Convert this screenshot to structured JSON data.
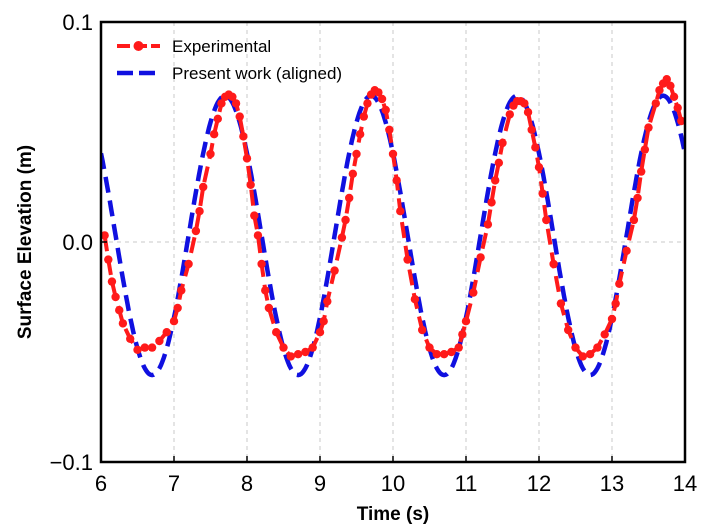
{
  "chart_data": {
    "type": "line",
    "xlabel": "Time (s)",
    "ylabel": "Surface Elevation (m)",
    "xlim": [
      6,
      14
    ],
    "ylim": [
      -0.1,
      0.1
    ],
    "xticks": [
      6,
      7,
      8,
      9,
      10,
      11,
      12,
      13,
      14
    ],
    "xtick_labels": [
      "6",
      "7",
      "8",
      "9",
      "10",
      "11",
      "12",
      "13",
      "14"
    ],
    "yticks": [
      -0.1,
      0.0,
      0.1
    ],
    "ytick_labels": [
      "−0.1",
      "0.0",
      "0.1"
    ],
    "grid": true,
    "legend_position": "top-left",
    "series": [
      {
        "name": "Experimental",
        "color": "#ff1a1a",
        "style": "dashed-with-circle-markers",
        "x": [
          6.05,
          6.1,
          6.15,
          6.2,
          6.25,
          6.3,
          6.4,
          6.5,
          6.6,
          6.7,
          6.8,
          6.9,
          7.0,
          7.05,
          7.1,
          7.2,
          7.3,
          7.35,
          7.4,
          7.5,
          7.55,
          7.6,
          7.65,
          7.7,
          7.75,
          7.8,
          7.85,
          7.9,
          7.95,
          8.0,
          8.05,
          8.1,
          8.15,
          8.2,
          8.25,
          8.3,
          8.4,
          8.5,
          8.6,
          8.7,
          8.8,
          8.9,
          9.0,
          9.05,
          9.1,
          9.2,
          9.3,
          9.35,
          9.4,
          9.45,
          9.5,
          9.55,
          9.6,
          9.65,
          9.7,
          9.75,
          9.8,
          9.85,
          9.9,
          9.95,
          10.0,
          10.05,
          10.1,
          10.2,
          10.3,
          10.4,
          10.5,
          10.6,
          10.7,
          10.8,
          10.9,
          10.95,
          11.0,
          11.1,
          11.2,
          11.3,
          11.35,
          11.4,
          11.45,
          11.5,
          11.6,
          11.65,
          11.7,
          11.75,
          11.8,
          11.85,
          11.9,
          11.95,
          12.0,
          12.05,
          12.1,
          12.2,
          12.3,
          12.4,
          12.5,
          12.6,
          12.7,
          12.8,
          12.9,
          13.0,
          13.05,
          13.1,
          13.2,
          13.3,
          13.35,
          13.4,
          13.45,
          13.5,
          13.6,
          13.65,
          13.7,
          13.75,
          13.8,
          13.85,
          13.9,
          13.95
        ],
        "y": [
          0.003,
          -0.008,
          -0.018,
          -0.025,
          -0.031,
          -0.037,
          -0.044,
          -0.049,
          -0.048,
          -0.048,
          -0.045,
          -0.041,
          -0.036,
          -0.03,
          -0.022,
          -0.01,
          0.005,
          0.014,
          0.025,
          0.04,
          0.049,
          0.056,
          0.063,
          0.066,
          0.067,
          0.066,
          0.063,
          0.057,
          0.048,
          0.038,
          0.026,
          0.012,
          0.003,
          -0.01,
          -0.022,
          -0.03,
          -0.041,
          -0.048,
          -0.052,
          -0.051,
          -0.05,
          -0.048,
          -0.041,
          -0.036,
          -0.027,
          -0.013,
          0.002,
          0.01,
          0.02,
          0.031,
          0.04,
          0.049,
          0.057,
          0.063,
          0.067,
          0.069,
          0.068,
          0.065,
          0.06,
          0.051,
          0.04,
          0.028,
          0.014,
          -0.008,
          -0.026,
          -0.04,
          -0.048,
          -0.051,
          -0.051,
          -0.05,
          -0.048,
          -0.042,
          -0.036,
          -0.023,
          -0.007,
          0.008,
          0.018,
          0.028,
          0.036,
          0.045,
          0.058,
          0.062,
          0.064,
          0.064,
          0.063,
          0.059,
          0.051,
          0.043,
          0.034,
          0.022,
          0.01,
          -0.01,
          -0.028,
          -0.04,
          -0.048,
          -0.052,
          -0.051,
          -0.048,
          -0.042,
          -0.035,
          -0.028,
          -0.019,
          -0.004,
          0.01,
          0.02,
          0.032,
          0.042,
          0.052,
          0.063,
          0.069,
          0.072,
          0.074,
          0.071,
          0.066,
          0.061,
          0.055
        ],
        "markers": true
      },
      {
        "name": "Present work (aligned)",
        "color": "#1010e0",
        "style": "dashed",
        "period": 2.0,
        "phase_of_max": 7.7,
        "mean": 0.003,
        "amplitude": 0.0635,
        "xrange": [
          6.0,
          14.0
        ],
        "markers": false
      }
    ]
  }
}
